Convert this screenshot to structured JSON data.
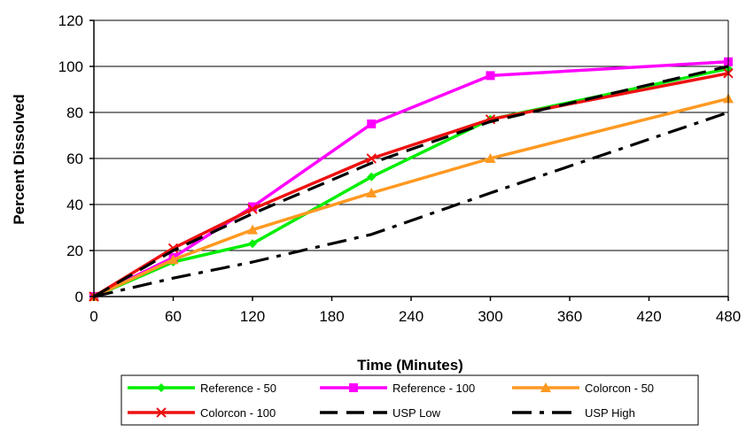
{
  "chart_data": {
    "type": "line",
    "title": "",
    "xlabel": "Time (Minutes)",
    "ylabel": "Percent Dissolved",
    "xlim": [
      0,
      480
    ],
    "ylim": [
      0,
      120
    ],
    "xticks": [
      0,
      60,
      120,
      180,
      240,
      300,
      360,
      420,
      480
    ],
    "yticks": [
      0,
      20,
      40,
      60,
      80,
      100,
      120
    ],
    "grid": "horizontal",
    "legend_position": "bottom",
    "series": [
      {
        "name": "Reference - 50",
        "color": "#00ee00",
        "dash": "solid",
        "marker": "diamond",
        "points": [
          [
            0,
            0
          ],
          [
            60,
            15
          ],
          [
            120,
            23
          ],
          [
            210,
            52
          ],
          [
            300,
            77
          ],
          [
            480,
            99
          ]
        ]
      },
      {
        "name": "Reference - 100",
        "color": "#ff00ff",
        "dash": "solid",
        "marker": "square",
        "points": [
          [
            0,
            0
          ],
          [
            60,
            17
          ],
          [
            120,
            39
          ],
          [
            210,
            75
          ],
          [
            300,
            96
          ],
          [
            480,
            102
          ]
        ]
      },
      {
        "name": "Colorcon - 50",
        "color": "#ff9922",
        "dash": "solid",
        "marker": "triangle",
        "points": [
          [
            0,
            0
          ],
          [
            60,
            16
          ],
          [
            120,
            29
          ],
          [
            210,
            45
          ],
          [
            300,
            60
          ],
          [
            480,
            86
          ]
        ]
      },
      {
        "name": "Colorcon - 100",
        "color": "#ee1111",
        "dash": "solid",
        "marker": "x",
        "points": [
          [
            0,
            0
          ],
          [
            60,
            21
          ],
          [
            120,
            38
          ],
          [
            210,
            60
          ],
          [
            300,
            77
          ],
          [
            480,
            97
          ]
        ]
      },
      {
        "name": "USP Low",
        "color": "#000000",
        "dash": "dash",
        "marker": "none",
        "points": [
          [
            0,
            0
          ],
          [
            60,
            20
          ],
          [
            120,
            36
          ],
          [
            210,
            58
          ],
          [
            300,
            76
          ],
          [
            480,
            100
          ]
        ]
      },
      {
        "name": "USP High",
        "color": "#000000",
        "dash": "dashdot",
        "marker": "none",
        "points": [
          [
            0,
            0
          ],
          [
            60,
            8
          ],
          [
            120,
            15
          ],
          [
            210,
            27
          ],
          [
            300,
            45
          ],
          [
            480,
            80
          ]
        ]
      }
    ]
  }
}
